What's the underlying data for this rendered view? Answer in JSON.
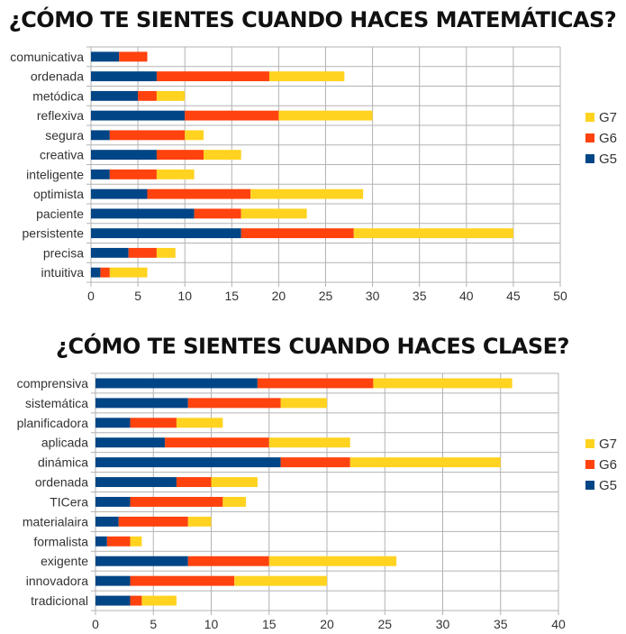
{
  "colors": {
    "G5": "#004586",
    "G6": "#ff420e",
    "G7": "#ffd320",
    "grid": "#b3b3b3",
    "axis": "#b3b3b3"
  },
  "chart_data": [
    {
      "type": "bar",
      "orientation": "horizontal",
      "stacked": true,
      "title": "¿CÓMO TE SIENTES CUANDO HACES MATEMÁTICAS?",
      "categories": [
        "comunicativa",
        "ordenada",
        "metódica",
        "reflexiva",
        "segura",
        "creativa",
        "inteligente",
        "optimista",
        "paciente",
        "persistente",
        "precisa",
        "intuitiva"
      ],
      "series": [
        {
          "name": "G5",
          "values": [
            3,
            7,
            5,
            10,
            2,
            7,
            2,
            6,
            11,
            16,
            4,
            1
          ]
        },
        {
          "name": "G6",
          "values": [
            3,
            12,
            2,
            10,
            8,
            5,
            5,
            11,
            5,
            12,
            3,
            1
          ]
        },
        {
          "name": "G7",
          "values": [
            0,
            8,
            3,
            10,
            2,
            4,
            4,
            12,
            7,
            17,
            2,
            4
          ]
        }
      ],
      "xlim": [
        0,
        50
      ],
      "xticks": [
        0,
        5,
        10,
        15,
        20,
        25,
        30,
        35,
        40,
        45,
        50
      ],
      "xtick_labels": [
        "0",
        "5",
        "10",
        "15",
        "20",
        "25",
        "30",
        "35",
        "40",
        "45",
        "50"
      ],
      "grid": true,
      "legend": {
        "position": "right",
        "entries": [
          "G7",
          "G6",
          "G5"
        ]
      }
    },
    {
      "type": "bar",
      "orientation": "horizontal",
      "stacked": true,
      "title": "¿CÓMO TE SIENTES CUANDO HACES CLASE?",
      "categories": [
        "comprensiva",
        "sistemática",
        "planificadora",
        "aplicada",
        "dinámica",
        "ordenada",
        "TICera",
        "materialaira",
        "formalista",
        "exigente",
        "innovadora",
        "tradicional"
      ],
      "series": [
        {
          "name": "G5",
          "values": [
            14,
            8,
            3,
            6,
            16,
            7,
            3,
            2,
            1,
            8,
            3,
            3
          ]
        },
        {
          "name": "G6",
          "values": [
            10,
            8,
            4,
            9,
            6,
            3,
            8,
            6,
            2,
            7,
            9,
            1
          ]
        },
        {
          "name": "G7",
          "values": [
            12,
            4,
            4,
            7,
            13,
            4,
            2,
            2,
            1,
            11,
            8,
            3
          ]
        }
      ],
      "xlim": [
        0,
        40
      ],
      "xticks": [
        0,
        5,
        10,
        15,
        20,
        25,
        30,
        35,
        40
      ],
      "xtick_labels": [
        "0",
        "5",
        "10",
        "15",
        "20",
        "25",
        "30",
        "35",
        "40"
      ],
      "grid": true,
      "legend": {
        "position": "right",
        "entries": [
          "G7",
          "G6",
          "G5"
        ]
      }
    }
  ]
}
